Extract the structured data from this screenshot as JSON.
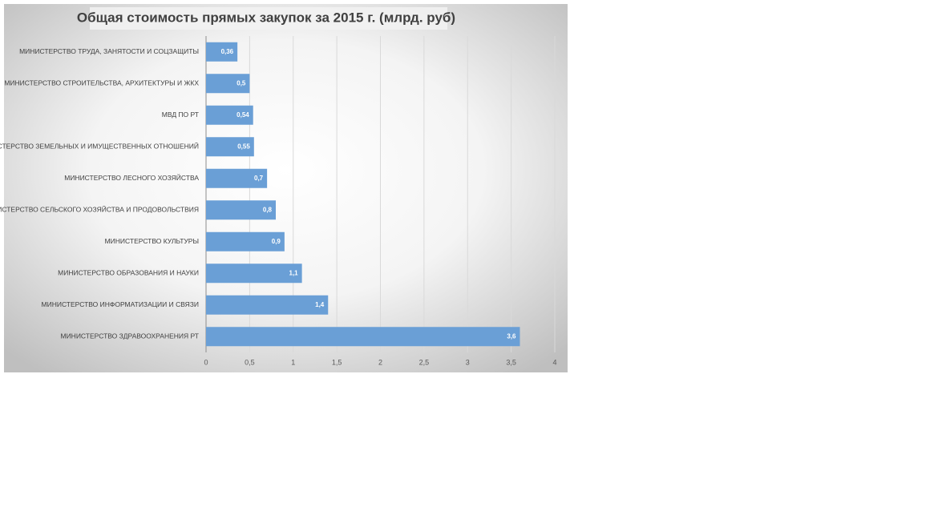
{
  "chart_data": {
    "type": "bar",
    "title": "Общая стоимость прямых закупок за 2015 г. (млрд. руб)",
    "categories": [
      "МИНИСТЕРСТВО ТРУДА, ЗАНЯТОСТИ И СОЦЗАЩИТЫ",
      "МИНИСТЕРСТВО СТРОИТЕЛЬСТВА, АРХИТЕКТУРЫ И ЖКХ",
      "МВД ПО РТ",
      "МИНИСТЕРСТВО ЗЕМЕЛЬНЫХ И ИМУЩЕСТВЕННЫХ ОТНОШЕНИЙ",
      "МИНИСТЕРСТВО ЛЕСНОГО ХОЗЯЙСТВА",
      "МИНИСТЕРСТВО СЕЛЬСКОГО ХОЗЯЙСТВА И ПРОДОВОЛЬСТВИЯ",
      "МИНИСТЕРСТВО КУЛЬТУРЫ",
      "МИНИСТЕРСТВО ОБРАЗОВАНИЯ И НАУКИ",
      "МИНИСТЕРСТВО ИНФОРМАТИЗАЦИИ И СВЯЗИ",
      "МИНИСТЕРСТВО ЗДРАВООХРАНЕНИЯ РТ"
    ],
    "values": [
      0.36,
      0.5,
      0.54,
      0.55,
      0.7,
      0.8,
      0.9,
      1.1,
      1.4,
      3.6
    ],
    "value_labels": [
      "0,36",
      "0,5",
      "0,54",
      "0,55",
      "0,7",
      "0,8",
      "0,9",
      "1,1",
      "1,4",
      "3,6"
    ],
    "color": "#6a9fd6",
    "xlim": [
      0,
      4
    ],
    "xticks": [
      0,
      {
        "value": 0.5,
        "label": "0,5"
      },
      1,
      {
        "value": 1.5,
        "label": "1,5"
      },
      2,
      {
        "value": 2.5,
        "label": "2,5"
      },
      3,
      {
        "value": 3.5,
        "label": "3,5"
      },
      4
    ],
    "grid": true
  }
}
